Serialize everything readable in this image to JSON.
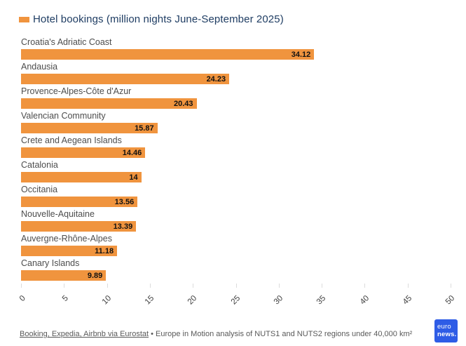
{
  "chart_data": {
    "type": "bar",
    "orientation": "horizontal",
    "title": "Hotel bookings (million nights June-September 2025)",
    "legend_label": "Hotel bookings (million nights June-September 2025)",
    "legend_position": "top",
    "categories": [
      "Croatia's Adriatic Coast",
      "Andausia",
      "Provence-Alpes-Côte d'Azur",
      "Valencian Community",
      "Crete and Aegean Islands",
      "Catalonia",
      "Occitania",
      "Nouvelle-Aquitaine",
      "Auvergne-Rhône-Alpes",
      "Canary Islands"
    ],
    "values": [
      34.12,
      24.23,
      20.43,
      15.87,
      14.46,
      14,
      13.56,
      13.39,
      11.18,
      9.89
    ],
    "value_labels": [
      "34.12",
      "24.23",
      "20.43",
      "15.87",
      "14.46",
      "14",
      "13.56",
      "13.39",
      "11.18",
      "9.89"
    ],
    "xlabel": "",
    "ylabel": "",
    "xlim": [
      0,
      50
    ],
    "x_ticks": [
      0,
      5,
      10,
      15,
      20,
      25,
      30,
      35,
      40,
      45,
      50
    ],
    "grid": false,
    "bar_color": "#F0943E"
  },
  "footer": {
    "source_link": "Booking, Expedia, Airbnb via Eurostat",
    "separator": " • ",
    "note": "Europe in Motion analysis of NUTS1 and NUTS2 regions under 40,000 km²"
  },
  "logo": {
    "line1": "euro",
    "line2": "news.",
    "background": "#2E5CE6"
  },
  "colors": {
    "bar": "#F0943E",
    "title": "#1F3D63",
    "category_label": "#4D4D4D",
    "value_label": "#111111",
    "axis_label": "#404040",
    "footer_text": "#595959",
    "tick": "#DCDCDC"
  }
}
